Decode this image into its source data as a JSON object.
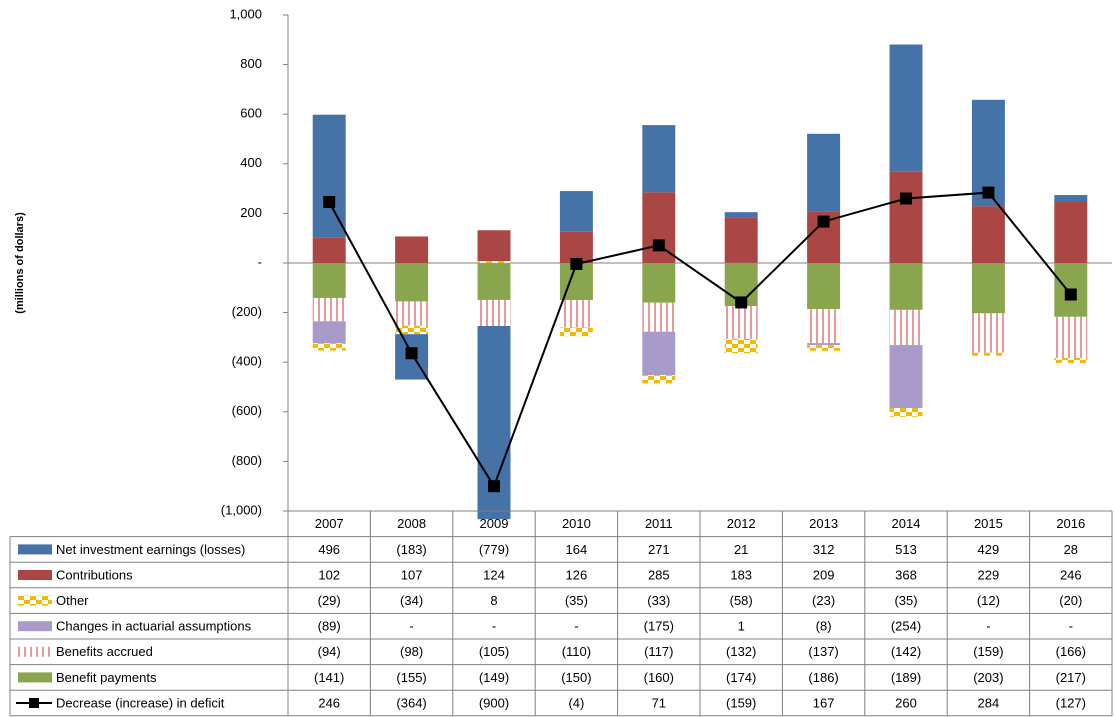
{
  "chart_data": {
    "type": "bar",
    "stacked": true,
    "y_axis_label": "(millions of dollars)",
    "categories": [
      "2007",
      "2008",
      "2009",
      "2010",
      "2011",
      "2012",
      "2013",
      "2014",
      "2015",
      "2016"
    ],
    "ylim": [
      -1000,
      1000
    ],
    "yticks": [
      {
        "value": 1000,
        "label": "1,000"
      },
      800,
      600,
      400,
      200,
      {
        "value": 0,
        "label": "-"
      },
      {
        "value": -200,
        "label": "(200)"
      },
      {
        "value": -400,
        "label": "(400)"
      },
      {
        "value": -600,
        "label": "(600)"
      },
      {
        "value": -800,
        "label": "(800)"
      },
      {
        "value": -1000,
        "label": "(1,000)"
      }
    ],
    "series": [
      {
        "name": "Net investment earnings (losses)",
        "color": "#4572a7",
        "values": [
          496,
          -183,
          -779,
          164,
          271,
          21,
          312,
          513,
          429,
          28
        ],
        "value_labels": [
          "496",
          "(183)",
          "(779)",
          "164",
          "271",
          "21",
          "312",
          "513",
          "429",
          "28"
        ]
      },
      {
        "name": "Contributions",
        "color": "#aa4643",
        "values": [
          102,
          107,
          124,
          126,
          285,
          183,
          209,
          368,
          229,
          246
        ],
        "value_labels": [
          "102",
          "107",
          "124",
          "126",
          "285",
          "183",
          "209",
          "368",
          "229",
          "246"
        ]
      },
      {
        "name": "Other",
        "color": "#f5b800",
        "pattern": "checker",
        "values": [
          -29,
          -34,
          8,
          -35,
          -33,
          -58,
          -23,
          -35,
          -12,
          -20
        ],
        "value_labels": [
          "(29)",
          "(34)",
          "8",
          "(35)",
          "(33)",
          "(58)",
          "(23)",
          "(35)",
          "(12)",
          "(20)"
        ]
      },
      {
        "name": "Changes in actuarial assumptions",
        "color": "#a99bc9",
        "values": [
          -89,
          0,
          0,
          0,
          -175,
          1,
          -8,
          -254,
          0,
          0
        ],
        "value_labels": [
          "(89)",
          "-",
          "-",
          "-",
          "(175)",
          "1",
          "(8)",
          "(254)",
          "-",
          "-"
        ]
      },
      {
        "name": "Benefits accrued",
        "color": "#e49a9a",
        "pattern": "stripes",
        "values": [
          -94,
          -98,
          -105,
          -110,
          -117,
          -132,
          -137,
          -142,
          -159,
          -166
        ],
        "value_labels": [
          "(94)",
          "(98)",
          "(105)",
          "(110)",
          "(117)",
          "(132)",
          "(137)",
          "(142)",
          "(159)",
          "(166)"
        ]
      },
      {
        "name": "Benefit payments",
        "color": "#89a54e",
        "values": [
          -141,
          -155,
          -149,
          -150,
          -160,
          -174,
          -186,
          -189,
          -203,
          -217
        ],
        "value_labels": [
          "(141)",
          "(155)",
          "(149)",
          "(150)",
          "(160)",
          "(174)",
          "(186)",
          "(189)",
          "(203)",
          "(217)"
        ]
      },
      {
        "name": "Decrease (increase) in deficit",
        "color": "#000000",
        "type": "line",
        "values": [
          246,
          -364,
          -900,
          -4,
          71,
          -159,
          167,
          260,
          284,
          -127
        ],
        "value_labels": [
          "246",
          "(364)",
          "(900)",
          "(4)",
          "71",
          "(159)",
          "167",
          "260",
          "284",
          "(127)"
        ]
      }
    ]
  }
}
